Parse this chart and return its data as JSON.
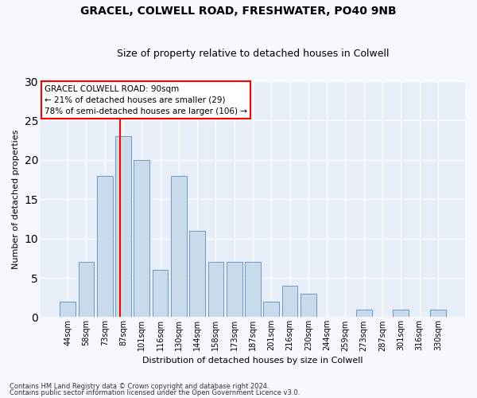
{
  "title_line1": "GRACEL, COLWELL ROAD, FRESHWATER, PO40 9NB",
  "title_line2": "Size of property relative to detached houses in Colwell",
  "xlabel": "Distribution of detached houses by size in Colwell",
  "ylabel": "Number of detached properties",
  "bar_labels": [
    "44sqm",
    "58sqm",
    "73sqm",
    "87sqm",
    "101sqm",
    "116sqm",
    "130sqm",
    "144sqm",
    "158sqm",
    "173sqm",
    "187sqm",
    "201sqm",
    "216sqm",
    "230sqm",
    "244sqm",
    "259sqm",
    "273sqm",
    "287sqm",
    "301sqm",
    "316sqm",
    "330sqm"
  ],
  "bar_heights": [
    2,
    7,
    18,
    23,
    20,
    6,
    18,
    11,
    7,
    7,
    7,
    2,
    4,
    3,
    0,
    0,
    1,
    0,
    1,
    0,
    1
  ],
  "bar_color": "#c9daea",
  "bar_edge_color": "#6699cc",
  "vline_x": 3.0,
  "vline_color": "red",
  "ylim": [
    0,
    30
  ],
  "yticks": [
    0,
    5,
    10,
    15,
    20,
    25,
    30
  ],
  "annotation_text": "GRACEL COLWELL ROAD: 90sqm\n← 21% of detached houses are smaller (29)\n78% of semi-detached houses are larger (106) →",
  "annotation_box_facecolor": "white",
  "annotation_box_edgecolor": "red",
  "footer_line1": "Contains HM Land Registry data © Crown copyright and database right 2024.",
  "footer_line2": "Contains public sector information licensed under the Open Government Licence v3.0.",
  "fig_facecolor": "#f5f8fd",
  "ax_facecolor": "#e8eef8",
  "grid_color": "white",
  "title1_fontsize": 10,
  "title2_fontsize": 9,
  "axis_label_fontsize": 8,
  "tick_fontsize": 7,
  "annotation_fontsize": 7.5,
  "footer_fontsize": 6
}
